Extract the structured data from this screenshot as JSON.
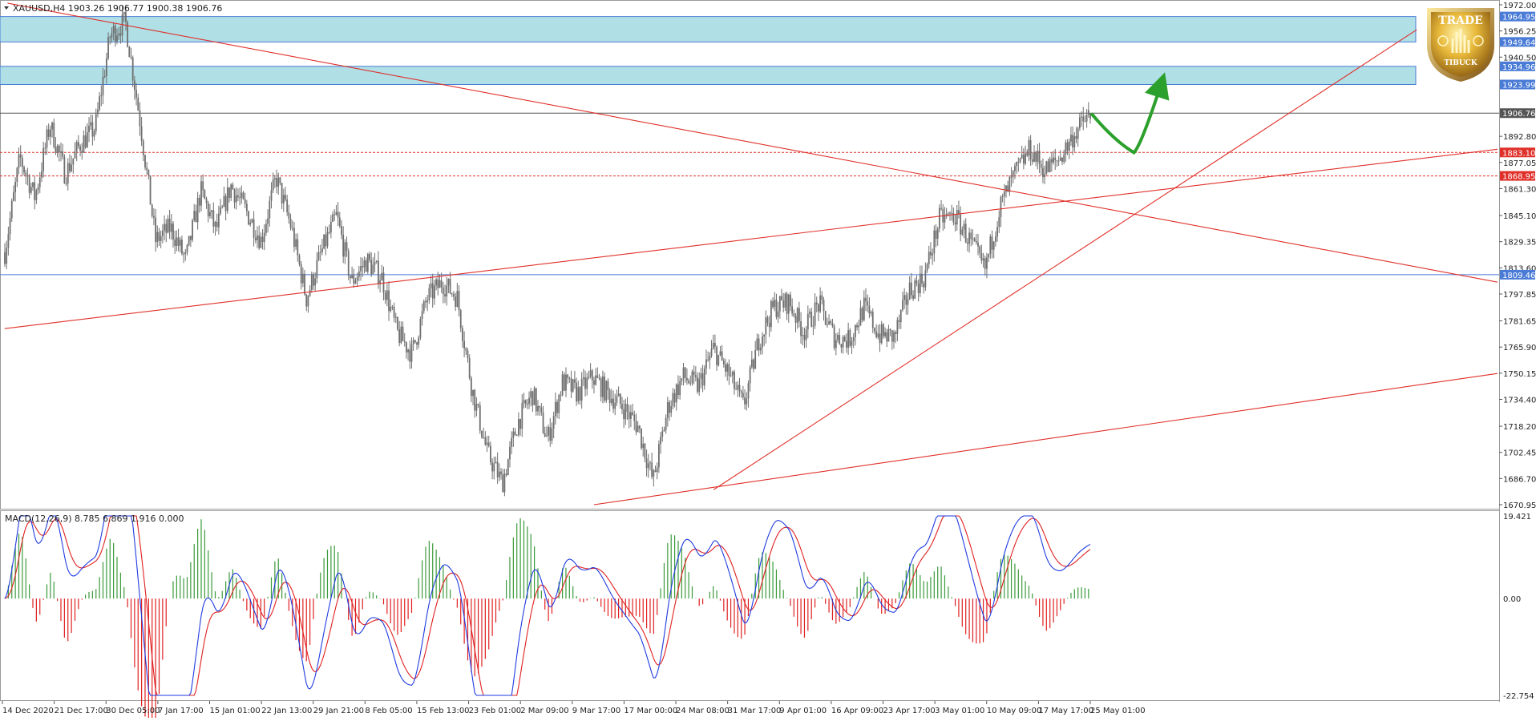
{
  "chart_data": [
    {
      "type": "candlestick",
      "symbol": "XAUUSD,H4",
      "header": "XAUUSD,H4  1903.26 1906.77 1900.38 1906.76",
      "ohlc": {
        "open": 1903.26,
        "high": 1906.77,
        "low": 1900.38,
        "close": 1906.76
      },
      "ylim": [
        1670.95,
        1972.0
      ],
      "y_ticks": [
        "1972.00",
        "1956.25",
        "1940.50",
        "1892.80",
        "1877.05",
        "1861.30",
        "1845.10",
        "1829.35",
        "1813.60",
        "1797.85",
        "1781.65",
        "1765.90",
        "1750.15",
        "1734.40",
        "1718.20",
        "1702.45",
        "1686.70",
        "1670.95"
      ],
      "x_labels": [
        "14 Dec 2020",
        "21 Dec 17:00",
        "30 Dec 05:00",
        "7 Jan 17:00",
        "15 Jan 01:00",
        "22 Jan 13:00",
        "29 Jan 21:00",
        "8 Feb 05:00",
        "15 Feb 13:00",
        "23 Feb 01:00",
        "2 Mar 09:00",
        "9 Mar 17:00",
        "17 Mar 00:00",
        "24 Mar 08:00",
        "31 Mar 17:00",
        "9 Apr 01:00",
        "16 Apr 09:00",
        "23 Apr 17:00",
        "3 May 01:00",
        "10 May 09:00",
        "17 May 17:00",
        "25 May 01:00"
      ],
      "price_path": [
        1823,
        1880,
        1856,
        1900,
        1870,
        1888,
        1898,
        1954,
        1962,
        1900,
        1830,
        1838,
        1818,
        1860,
        1836,
        1863,
        1848,
        1830,
        1868,
        1838,
        1795,
        1823,
        1845,
        1805,
        1818,
        1808,
        1775,
        1762,
        1795,
        1805,
        1796,
        1740,
        1702,
        1684,
        1720,
        1738,
        1710,
        1745,
        1738,
        1748,
        1738,
        1730,
        1718,
        1685,
        1730,
        1748,
        1742,
        1765,
        1750,
        1730,
        1770,
        1790,
        1793,
        1775,
        1792,
        1772,
        1770,
        1790,
        1773,
        1772,
        1800,
        1808,
        1843,
        1845,
        1830,
        1812,
        1850,
        1870,
        1885,
        1872,
        1880,
        1895,
        1906.76
      ],
      "boxes": [
        {
          "top": 1964.95,
          "bottom": 1949.64
        },
        {
          "top": 1934.96,
          "bottom": 1923.99
        }
      ],
      "horizontal_lines": [
        {
          "price": 1906.76,
          "style": "solid",
          "color": "#555555"
        },
        {
          "price": 1883.1,
          "style": "dashed",
          "color": "#e0302a"
        },
        {
          "price": 1868.95,
          "style": "dashed",
          "color": "#e0302a"
        },
        {
          "price": 1809.46,
          "style": "solid",
          "color": "#4a7bd6"
        }
      ],
      "price_tags": [
        {
          "price": 1964.95,
          "label": "1964.95",
          "color": "#4a7bd6"
        },
        {
          "price": 1949.64,
          "label": "1949.64",
          "color": "#4a7bd6"
        },
        {
          "price": 1934.96,
          "label": "1934.96",
          "color": "#4a7bd6"
        },
        {
          "price": 1923.99,
          "label": "1923.99",
          "color": "#4a7bd6"
        },
        {
          "price": 1906.76,
          "label": "1906.76",
          "color": "#555555"
        },
        {
          "price": 1883.1,
          "label": "1883.10",
          "color": "#e0302a"
        },
        {
          "price": 1868.95,
          "label": "1868.95",
          "color": "#e0302a"
        },
        {
          "price": 1809.46,
          "label": "1809.46",
          "color": "#4a7bd6"
        }
      ],
      "trendlines": [
        {
          "name": "descending-resistance",
          "from": {
            "t": 0.4,
            "p": 1973
          },
          "to": {
            "t": 100,
            "p": 1805
          }
        },
        {
          "name": "ascending-support-upper",
          "from": {
            "t": 0.2,
            "p": 1777
          },
          "to": {
            "t": 100,
            "p": 1885
          }
        },
        {
          "name": "ascending-support-lower",
          "from": {
            "t": 39.6,
            "p": 1670.95
          },
          "to": {
            "t": 100,
            "p": 1750
          }
        },
        {
          "name": "ascending-from-low",
          "from": {
            "t": 47.6,
            "p": 1680
          },
          "to": {
            "t": 94.6,
            "p": 1957
          }
        }
      ],
      "projection_arrow": {
        "color": "#2ca02c",
        "points": [
          {
            "t": 72.9,
            "p": 1906
          },
          {
            "t": 74.4,
            "p": 1890
          },
          {
            "t": 75.7,
            "p": 1883
          },
          {
            "t": 76.2,
            "p": 1888
          },
          {
            "t": 77.5,
            "p": 1924
          }
        ]
      },
      "colors": {
        "candle": "#6e6e6e",
        "box_fill": "#b0dfe6",
        "box_border": "#4a7bd6",
        "trendline": "#e0302a",
        "accent": "#2ca02c"
      }
    },
    {
      "type": "macd",
      "label": "MACD(12,26,9) 8.785 6.869 1.916 0.000",
      "ylim": [
        -22.754,
        19.421
      ],
      "y_ticks": [
        "19.421",
        "0.00",
        "-22.754"
      ],
      "colors": {
        "macd_line": "#1f3be0",
        "signal_line": "#e02020",
        "hist_pos": "#3a9a3a",
        "hist_neg": "#e02020"
      }
    }
  ],
  "logo": {
    "line1": "TRADE",
    "line2": "TIBUCK"
  }
}
